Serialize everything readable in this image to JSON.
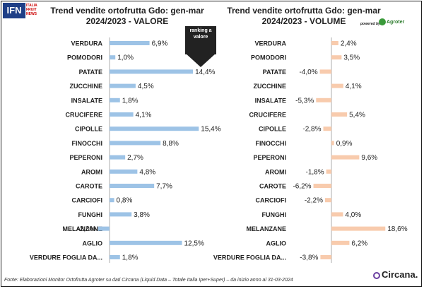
{
  "logo": {
    "text": "IFN",
    "sub": "ITALIA FRUIT NEWS"
  },
  "powered_by": "powered by",
  "agroter": "Agroter",
  "ranking_label": "ranking a valore",
  "footer": "Fonte: Elaborazioni Monitor Ortofrutta Agroter su dati Circana (Liquid Data – Totale Italia Iper+Super) – da inizio anno al 31-03-2024",
  "circana": "Circana.",
  "colors": {
    "valore": "#9dc3e6",
    "volume": "#f8cbad",
    "text": "#222222"
  },
  "chart_data": [
    {
      "type": "bar",
      "orientation": "horizontal",
      "title": "Trend vendite ortofrutta Gdo: gen-mar",
      "subtitle": "2024/2023 - VALORE",
      "categories": [
        "VERDURA",
        "POMODORI",
        "PATATE",
        "ZUCCHINE",
        "INSALATE",
        "CRUCIFERE",
        "CIPOLLE",
        "FINOCCHI",
        "PEPERONI",
        "AROMI",
        "CAROTE",
        "CARCIOFI",
        "FUNGHI",
        "MELANZANE",
        "AGLIO",
        "VERDURE FOGLIA DA..."
      ],
      "values": [
        6.9,
        1.0,
        14.4,
        4.5,
        1.8,
        4.1,
        15.4,
        8.8,
        2.7,
        4.8,
        7.7,
        0.8,
        3.8,
        -2.0,
        12.5,
        1.8
      ],
      "value_labels": [
        "6,9%",
        "1,0%",
        "14,4%",
        "4,5%",
        "1,8%",
        "4,1%",
        "15,4%",
        "8,8%",
        "2,7%",
        "4,8%",
        "7,7%",
        "0,8%",
        "3,8%",
        "-2,0%",
        "12,5%",
        "1,8%"
      ],
      "unit": "%",
      "grid": false,
      "legend": "none"
    },
    {
      "type": "bar",
      "orientation": "horizontal",
      "title": "Trend vendite ortofrutta Gdo: gen-mar",
      "subtitle": "2024/2023 - VOLUME",
      "categories": [
        "VERDURA",
        "POMODORI",
        "PATATE",
        "ZUCCHINE",
        "INSALATE",
        "CRUCIFERE",
        "CIPOLLE",
        "FINOCCHI",
        "PEPERONI",
        "AROMI",
        "CAROTE",
        "CARCIOFI",
        "FUNGHI",
        "MELANZANE",
        "AGLIO",
        "VERDURE FOGLIA DA..."
      ],
      "values": [
        2.4,
        3.5,
        -4.0,
        4.1,
        -5.3,
        5.4,
        -2.8,
        0.9,
        9.6,
        -1.8,
        -6.2,
        -2.2,
        4.0,
        18.6,
        6.2,
        -3.8
      ],
      "value_labels": [
        "2,4%",
        "3,5%",
        "-4,0%",
        "4,1%",
        "-5,3%",
        "5,4%",
        "-2,8%",
        "0,9%",
        "9,6%",
        "-1,8%",
        "-6,2%",
        "-2,2%",
        "4,0%",
        "18,6%",
        "6,2%",
        "-3,8%"
      ],
      "unit": "%",
      "grid": false,
      "legend": "none"
    }
  ]
}
